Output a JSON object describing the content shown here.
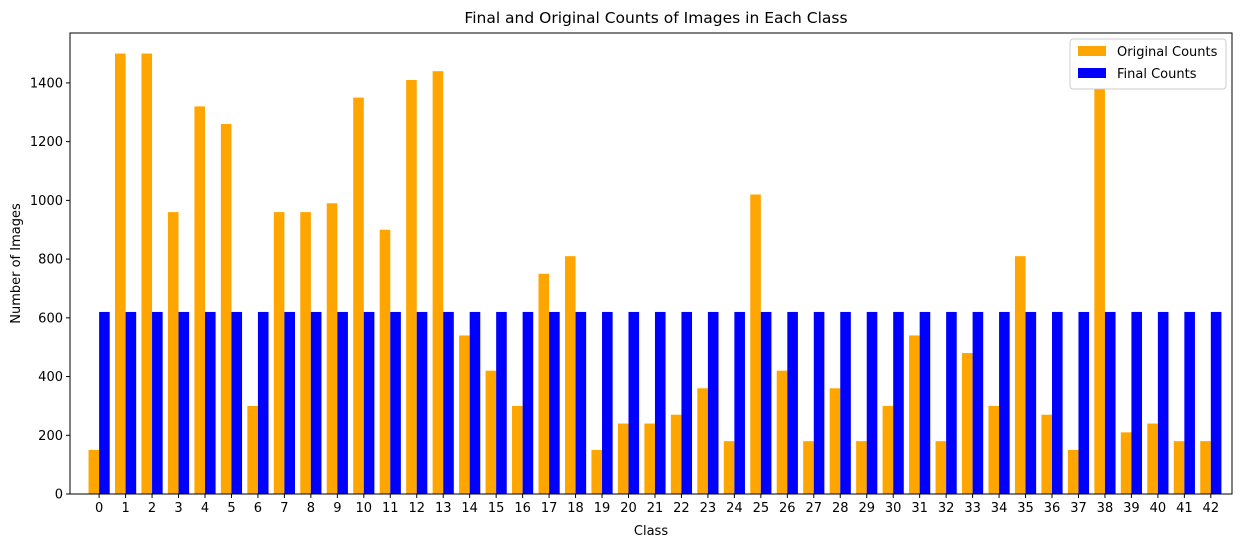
{
  "chart_data": {
    "type": "bar",
    "title": "Final and Original Counts of Images in Each Class",
    "xlabel": "Class",
    "ylabel": "Number of Images",
    "categories": [
      "0",
      "1",
      "2",
      "3",
      "4",
      "5",
      "6",
      "7",
      "8",
      "9",
      "10",
      "11",
      "12",
      "13",
      "14",
      "15",
      "16",
      "17",
      "18",
      "19",
      "20",
      "21",
      "22",
      "23",
      "24",
      "25",
      "26",
      "27",
      "28",
      "29",
      "30",
      "31",
      "32",
      "33",
      "34",
      "35",
      "36",
      "37",
      "38",
      "39",
      "40",
      "41",
      "42"
    ],
    "ylim": [
      0,
      1570
    ],
    "yticks": [
      0,
      200,
      400,
      600,
      800,
      1000,
      1200,
      1400
    ],
    "legend_position": "top-right",
    "grid": false,
    "series": [
      {
        "name": "Original Counts",
        "color": "#FFA500",
        "values": [
          150,
          1500,
          1500,
          960,
          1320,
          1260,
          300,
          960,
          960,
          990,
          1350,
          900,
          1410,
          1440,
          540,
          420,
          300,
          750,
          810,
          150,
          240,
          240,
          270,
          360,
          180,
          1020,
          420,
          180,
          360,
          180,
          300,
          540,
          180,
          480,
          300,
          810,
          270,
          150,
          1380,
          210,
          240,
          180,
          180
        ]
      },
      {
        "name": "Final Counts",
        "color": "#0000FF",
        "values": [
          620,
          620,
          620,
          620,
          620,
          620,
          620,
          620,
          620,
          620,
          620,
          620,
          620,
          620,
          620,
          620,
          620,
          620,
          620,
          620,
          620,
          620,
          620,
          620,
          620,
          620,
          620,
          620,
          620,
          620,
          620,
          620,
          620,
          620,
          620,
          620,
          620,
          620,
          620,
          620,
          620,
          620,
          620
        ]
      }
    ]
  }
}
